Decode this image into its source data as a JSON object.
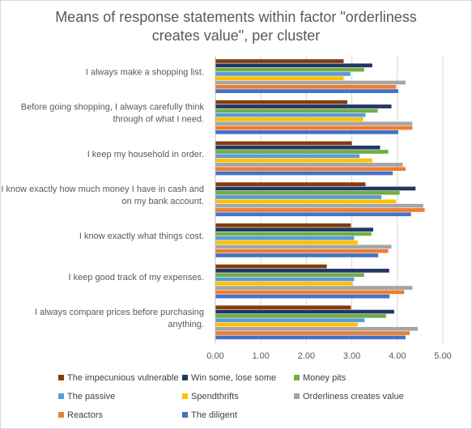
{
  "chart_data": {
    "type": "bar",
    "orientation": "horizontal",
    "title_lines": [
      "Means of response statements within factor \"orderliness",
      "creates value\", per cluster"
    ],
    "categories": [
      [
        "I always make a shopping list."
      ],
      [
        "Before going shopping, I always carefully think",
        "through of what I need."
      ],
      [
        "I keep my household in order."
      ],
      [
        "I know exactly how much money I have in cash and",
        "on my bank account."
      ],
      [
        "I know exactly what things cost."
      ],
      [
        "I keep good track of my expenses."
      ],
      [
        "I always compare prices before purchasing",
        "anything."
      ]
    ],
    "xlim": [
      0,
      5
    ],
    "xticks": [
      "0.00",
      "1.00",
      "2.00",
      "3.00",
      "4.00",
      "5.00"
    ],
    "grid": true,
    "legend_position": "bottom",
    "series": [
      {
        "name": "The impecunious vulnerable",
        "color": "#843c0c",
        "values": [
          2.82,
          2.9,
          3.0,
          3.3,
          2.98,
          2.45,
          2.98
        ]
      },
      {
        "name": "Win some, lose some",
        "color": "#203864",
        "values": [
          3.45,
          3.87,
          3.62,
          4.4,
          3.47,
          3.82,
          3.93
        ]
      },
      {
        "name": "Money pits",
        "color": "#70ad47",
        "values": [
          3.27,
          3.57,
          3.8,
          4.05,
          3.43,
          3.27,
          3.75
        ]
      },
      {
        "name": "The passive",
        "color": "#5b9bd5",
        "values": [
          2.97,
          3.3,
          3.17,
          3.65,
          3.05,
          3.05,
          3.28
        ]
      },
      {
        "name": "Spendthrifts",
        "color": "#ffc000",
        "values": [
          2.82,
          3.25,
          3.45,
          3.97,
          3.13,
          3.02,
          3.13
        ]
      },
      {
        "name": "Orderliness creates value",
        "color": "#a5a5a5",
        "values": [
          4.18,
          4.33,
          4.12,
          4.57,
          3.87,
          4.33,
          4.45
        ]
      },
      {
        "name": "Reactors",
        "color": "#ed7d31",
        "values": [
          3.97,
          4.33,
          4.18,
          4.6,
          3.8,
          4.15,
          4.27
        ]
      },
      {
        "name": "The diligent",
        "color": "#4472c4",
        "values": [
          4.02,
          4.02,
          3.9,
          4.3,
          3.58,
          3.83,
          4.18
        ]
      }
    ]
  }
}
